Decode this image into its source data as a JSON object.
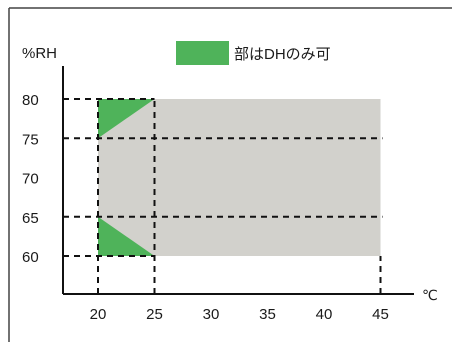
{
  "colors": {
    "gray_region": "#d2d1cc",
    "green_region": "#4fb35a",
    "axis": "#111111",
    "dash": "#111111",
    "frame": "#444444"
  },
  "chart_data": {
    "type": "area",
    "title": "",
    "xlabel": "℃",
    "ylabel": "%RH",
    "xlim": [
      15,
      47
    ],
    "ylim": [
      55,
      85
    ],
    "x_ticks": [
      "20",
      "25",
      "30",
      "35",
      "40",
      "45"
    ],
    "y_ticks": [
      "60",
      "65",
      "70",
      "75",
      "80"
    ],
    "legend": {
      "position": "top",
      "label": "部はDHのみ可"
    },
    "regions": [
      {
        "kind": "gray",
        "polygon": [
          [
            20,
            60
          ],
          [
            45,
            60
          ],
          [
            45,
            80
          ],
          [
            20,
            80
          ]
        ]
      },
      {
        "kind": "green",
        "polygon": [
          [
            20,
            80
          ],
          [
            25,
            80
          ],
          [
            20,
            75
          ]
        ]
      },
      {
        "kind": "green",
        "polygon": [
          [
            20,
            65
          ],
          [
            20,
            60
          ],
          [
            25,
            60
          ]
        ]
      }
    ],
    "dashed_lines": [
      {
        "orientation": "h",
        "y": 80,
        "x_from": 15,
        "x_to": 25
      },
      {
        "orientation": "h",
        "y": 75,
        "x_from": 15,
        "x_to": 45
      },
      {
        "orientation": "h",
        "y": 65,
        "x_from": 15,
        "x_to": 45
      },
      {
        "orientation": "h",
        "y": 60,
        "x_from": 15,
        "x_to": 25
      },
      {
        "orientation": "v",
        "x": 20,
        "y_from": 55,
        "y_to": 80
      },
      {
        "orientation": "v",
        "x": 25,
        "y_from": 55,
        "y_to": 80
      },
      {
        "orientation": "v",
        "x": 45,
        "y_from": 55,
        "y_to": 60
      }
    ]
  }
}
